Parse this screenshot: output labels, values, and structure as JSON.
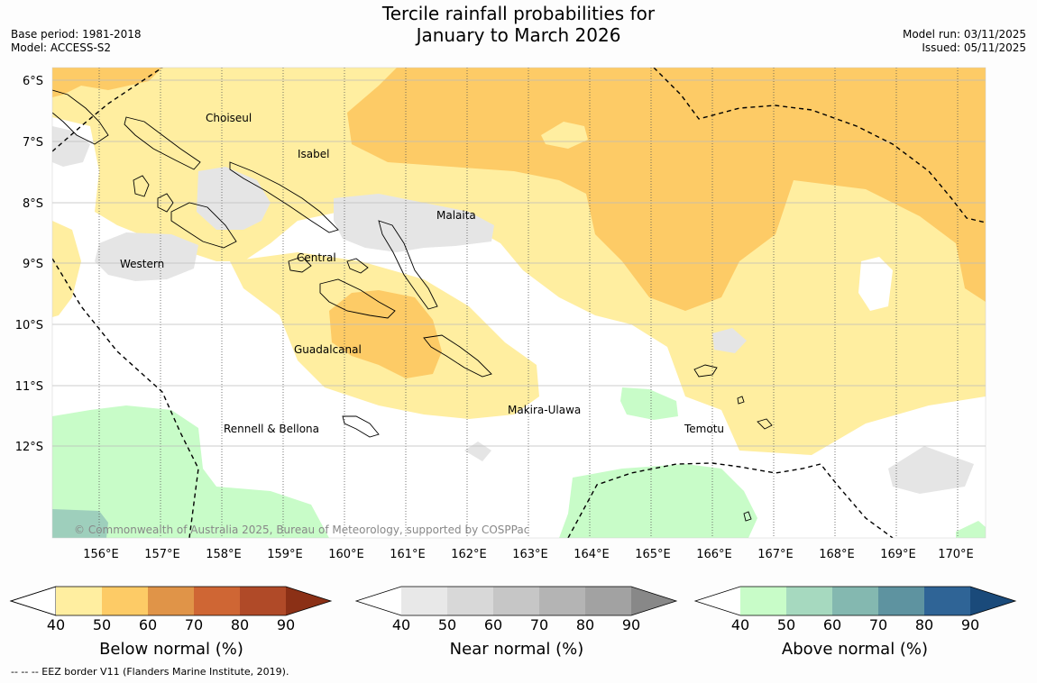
{
  "header": {
    "title_line1": "Tercile rainfall probabilities for",
    "title_line2": "January to March 2026",
    "base_period": "Base period: 1981-2018",
    "model": "Model: ACCESS-S2",
    "model_run": "Model run: 03/11/2025",
    "issued": "Issued: 05/11/2025"
  },
  "map": {
    "lat_labels": [
      "6°S",
      "7°S",
      "8°S",
      "9°S",
      "10°S",
      "11°S",
      "12°S"
    ],
    "lon_labels": [
      "156°E",
      "157°E",
      "158°E",
      "159°E",
      "160°E",
      "161°E",
      "162°E",
      "163°E",
      "164°E",
      "165°E",
      "166°E",
      "167°E",
      "168°E",
      "169°E",
      "170°E"
    ],
    "regions": [
      "Choiseul",
      "Isabel",
      "Malaita",
      "Western",
      "Central",
      "Guadalcanal",
      "Makira-Ulawa",
      "Rennell & Bellona",
      "Temotu"
    ],
    "copyright": "© Commonwealth of Australia 2025, Bureau of Meteorology, supported by COSPPac"
  },
  "colorbars": {
    "ticks": [
      "40",
      "50",
      "60",
      "70",
      "80",
      "90"
    ],
    "below": {
      "label": "Below normal (%)",
      "colors": [
        "#ffeea0",
        "#fdcb66",
        "#e09448",
        "#cf6634",
        "#b04a28",
        "#8b3016"
      ]
    },
    "near": {
      "label": "Near normal (%)",
      "colors": [
        "#e8e8e8",
        "#d8d8d8",
        "#c6c6c6",
        "#b4b4b4",
        "#a2a2a2",
        "#888888"
      ]
    },
    "above": {
      "label": "Above normal (%)",
      "colors": [
        "#c8fcc8",
        "#a6d9bf",
        "#84b8b0",
        "#5e93a0",
        "#2f6496",
        "#1a4a7a"
      ]
    }
  },
  "footer": {
    "eez_note": "--  --  -- EEZ border V11 (Flanders Marine Institute, 2019)."
  }
}
